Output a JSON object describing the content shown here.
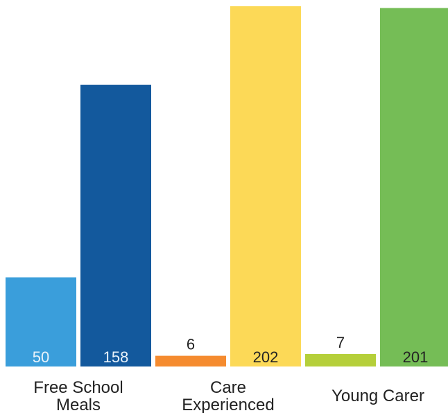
{
  "chart_data": {
    "type": "bar",
    "title": "",
    "xlabel": "",
    "ylabel": "",
    "grid": false,
    "legend": "none",
    "ylim": [
      0,
      202
    ],
    "groups": [
      {
        "label_lines": [
          "Free School",
          "Meals"
        ],
        "bars": [
          {
            "value": 50,
            "label": "50",
            "color": "#3a9edb",
            "label_color": "#e8f2fa",
            "label_inside": true
          },
          {
            "value": 158,
            "label": "158",
            "color": "#13599d",
            "label_color": "#e8f2fa",
            "label_inside": true
          }
        ]
      },
      {
        "label_lines": [
          "Care",
          "Experienced"
        ],
        "bars": [
          {
            "value": 6,
            "label": "6",
            "color": "#f58b2f",
            "label_color": "#222222",
            "label_inside": false
          },
          {
            "value": 202,
            "label": "202",
            "color": "#fcd957",
            "label_color": "#222222",
            "label_inside": true
          }
        ]
      },
      {
        "label_lines": [
          "Young Carer"
        ],
        "bars": [
          {
            "value": 7,
            "label": "7",
            "color": "#b5cf3a",
            "label_color": "#222222",
            "label_inside": false
          },
          {
            "value": 201,
            "label": "201",
            "color": "#75bd56",
            "label_color": "#222222",
            "label_inside": true
          }
        ]
      }
    ]
  }
}
